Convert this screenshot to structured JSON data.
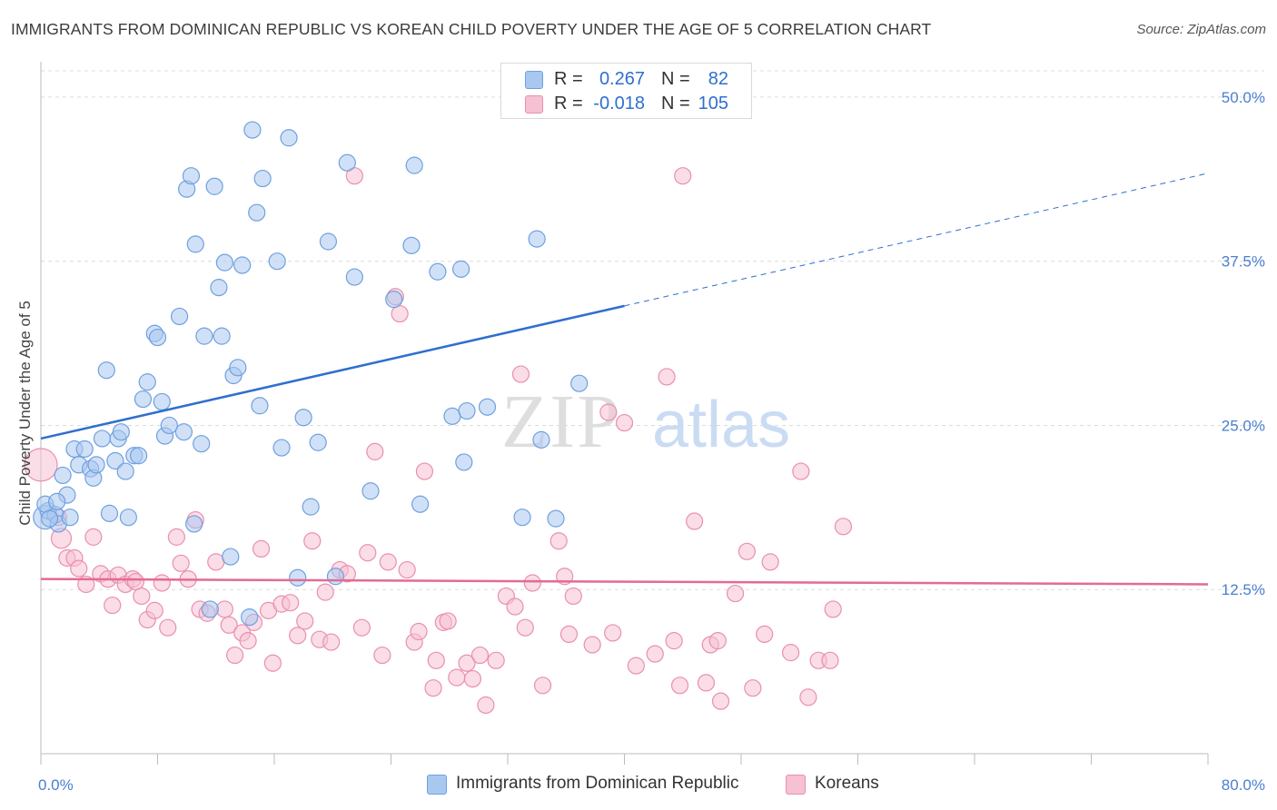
{
  "title": "IMMIGRANTS FROM DOMINICAN REPUBLIC VS KOREAN CHILD POVERTY UNDER THE AGE OF 5 CORRELATION CHART",
  "source": "Source: ZipAtlas.com",
  "watermark": {
    "zip": "ZIP",
    "atlas": "atlas"
  },
  "colors": {
    "blue_fill": "#a9c8f0",
    "blue_stroke": "#6fa0df",
    "blue_line": "#2f6fcf",
    "pink_fill": "#f6c1d2",
    "pink_stroke": "#ea8fae",
    "pink_line": "#e46a93",
    "grid": "#dcdcdc",
    "axis_text": "#4a7fd1"
  },
  "legend_top": [
    {
      "r_label": "R =",
      "r_value": "0.267",
      "n_label": "N =",
      "n_value": "82",
      "color": "#a9c8f0",
      "border": "#6fa0df"
    },
    {
      "r_label": "R =",
      "r_value": "-0.018",
      "n_label": "N =",
      "n_value": "105",
      "color": "#f6c1d2",
      "border": "#ea8fae"
    }
  ],
  "legend_bottom": [
    {
      "label": "Immigrants from Dominican Republic",
      "color": "#a9c8f0",
      "border": "#6fa0df"
    },
    {
      "label": "Koreans",
      "color": "#f6c1d2",
      "border": "#ea8fae"
    }
  ],
  "chart_data": {
    "type": "scatter",
    "title": "IMMIGRANTS FROM DOMINICAN REPUBLIC VS KOREAN CHILD POVERTY UNDER THE AGE OF 5 CORRELATION CHART",
    "xlabel": "",
    "ylabel": "Child Poverty Under the Age of 5",
    "xlim": [
      0,
      80
    ],
    "ylim": [
      0,
      52
    ],
    "x_tick_labels": [
      "0.0%",
      "80.0%"
    ],
    "y_ticks": [
      12.5,
      25.0,
      37.5,
      50.0
    ],
    "y_tick_labels": [
      "12.5%",
      "25.0%",
      "37.5%",
      "50.0%"
    ],
    "grid": true,
    "legend_position": "top-center",
    "series": [
      {
        "name": "Immigrants from Dominican Republic",
        "color": "#a9c8f0",
        "trend": {
          "x": [
            0,
            40
          ],
          "y": [
            24.0,
            34.1
          ],
          "dashed_extension": {
            "x": [
              40,
              80
            ],
            "y": [
              34.1,
              44.2
            ]
          }
        },
        "points": [
          [
            0.3,
            18.0
          ],
          [
            0.5,
            18.5
          ],
          [
            1.0,
            18.2
          ],
          [
            1.2,
            17.5
          ],
          [
            1.5,
            21.2
          ],
          [
            1.8,
            19.7
          ],
          [
            2.0,
            18.0
          ],
          [
            2.3,
            23.2
          ],
          [
            2.6,
            22.0
          ],
          [
            3.0,
            23.2
          ],
          [
            3.4,
            21.7
          ],
          [
            3.6,
            21.0
          ],
          [
            3.8,
            22.0
          ],
          [
            4.2,
            24.0
          ],
          [
            4.5,
            29.2
          ],
          [
            4.7,
            18.3
          ],
          [
            5.1,
            22.3
          ],
          [
            5.3,
            24.0
          ],
          [
            5.5,
            24.5
          ],
          [
            5.8,
            21.5
          ],
          [
            6.0,
            18.0
          ],
          [
            6.4,
            22.7
          ],
          [
            6.7,
            22.7
          ],
          [
            7.0,
            27.0
          ],
          [
            7.3,
            28.3
          ],
          [
            7.8,
            32.0
          ],
          [
            8.0,
            31.7
          ],
          [
            8.3,
            26.8
          ],
          [
            8.5,
            24.2
          ],
          [
            8.8,
            25.0
          ],
          [
            9.5,
            33.3
          ],
          [
            9.8,
            24.5
          ],
          [
            10.0,
            43.0
          ],
          [
            10.3,
            44.0
          ],
          [
            10.5,
            17.5
          ],
          [
            10.6,
            38.8
          ],
          [
            11.0,
            23.6
          ],
          [
            11.2,
            31.8
          ],
          [
            11.6,
            11.0
          ],
          [
            11.9,
            43.2
          ],
          [
            12.2,
            35.5
          ],
          [
            12.4,
            31.8
          ],
          [
            12.6,
            37.4
          ],
          [
            13.0,
            15.0
          ],
          [
            13.2,
            28.8
          ],
          [
            13.5,
            29.4
          ],
          [
            13.8,
            37.2
          ],
          [
            14.3,
            10.4
          ],
          [
            14.5,
            47.5
          ],
          [
            14.8,
            41.2
          ],
          [
            15.0,
            26.5
          ],
          [
            15.2,
            43.8
          ],
          [
            16.2,
            37.5
          ],
          [
            16.5,
            23.3
          ],
          [
            17.0,
            46.9
          ],
          [
            17.6,
            13.4
          ],
          [
            18.0,
            25.6
          ],
          [
            18.5,
            18.8
          ],
          [
            19.0,
            23.7
          ],
          [
            19.7,
            39.0
          ],
          [
            20.2,
            13.5
          ],
          [
            21.0,
            45.0
          ],
          [
            21.5,
            36.3
          ],
          [
            22.6,
            20.0
          ],
          [
            24.2,
            34.6
          ],
          [
            25.4,
            38.7
          ],
          [
            25.6,
            44.8
          ],
          [
            26.0,
            19.0
          ],
          [
            27.2,
            36.7
          ],
          [
            28.2,
            25.7
          ],
          [
            28.8,
            36.9
          ],
          [
            29.0,
            22.2
          ],
          [
            29.2,
            26.1
          ],
          [
            30.6,
            26.4
          ],
          [
            33.0,
            18.0
          ],
          [
            34.0,
            39.2
          ],
          [
            34.3,
            23.9
          ],
          [
            35.3,
            17.9
          ],
          [
            36.9,
            28.2
          ],
          [
            0.3,
            19.0
          ],
          [
            0.6,
            17.9
          ],
          [
            1.1,
            19.2
          ]
        ]
      },
      {
        "name": "Koreans",
        "color": "#f6c1d2",
        "trend": {
          "x": [
            0,
            80
          ],
          "y": [
            13.3,
            12.9
          ]
        },
        "points": [
          [
            0.0,
            22.0
          ],
          [
            1.2,
            18.0
          ],
          [
            1.4,
            16.4
          ],
          [
            1.8,
            14.9
          ],
          [
            2.3,
            14.9
          ],
          [
            2.6,
            14.1
          ],
          [
            3.1,
            12.9
          ],
          [
            3.6,
            16.5
          ],
          [
            4.1,
            13.7
          ],
          [
            4.6,
            13.3
          ],
          [
            4.9,
            11.3
          ],
          [
            5.3,
            13.6
          ],
          [
            5.8,
            12.9
          ],
          [
            6.3,
            13.3
          ],
          [
            6.5,
            13.1
          ],
          [
            6.9,
            12.0
          ],
          [
            7.3,
            10.2
          ],
          [
            7.8,
            10.9
          ],
          [
            8.3,
            13.0
          ],
          [
            8.7,
            9.6
          ],
          [
            9.3,
            16.5
          ],
          [
            9.6,
            14.5
          ],
          [
            10.1,
            13.3
          ],
          [
            10.6,
            17.8
          ],
          [
            10.9,
            11.0
          ],
          [
            11.4,
            10.7
          ],
          [
            12.0,
            14.6
          ],
          [
            12.6,
            11.0
          ],
          [
            12.9,
            9.8
          ],
          [
            13.3,
            7.5
          ],
          [
            13.8,
            9.2
          ],
          [
            14.2,
            8.6
          ],
          [
            14.6,
            10.0
          ],
          [
            15.1,
            15.6
          ],
          [
            15.6,
            10.9
          ],
          [
            15.9,
            6.9
          ],
          [
            16.5,
            11.4
          ],
          [
            17.1,
            11.5
          ],
          [
            17.6,
            9.0
          ],
          [
            18.1,
            10.1
          ],
          [
            18.6,
            16.2
          ],
          [
            19.1,
            8.7
          ],
          [
            19.5,
            12.3
          ],
          [
            19.9,
            8.5
          ],
          [
            20.5,
            14.0
          ],
          [
            21.0,
            13.7
          ],
          [
            21.5,
            44.0
          ],
          [
            22.0,
            9.6
          ],
          [
            22.4,
            15.3
          ],
          [
            22.9,
            23.0
          ],
          [
            23.4,
            7.5
          ],
          [
            23.8,
            14.6
          ],
          [
            24.3,
            34.8
          ],
          [
            24.6,
            33.5
          ],
          [
            25.1,
            14.0
          ],
          [
            25.6,
            8.5
          ],
          [
            25.9,
            9.3
          ],
          [
            26.3,
            21.5
          ],
          [
            26.9,
            5.0
          ],
          [
            27.1,
            7.1
          ],
          [
            27.6,
            10.0
          ],
          [
            27.9,
            10.1
          ],
          [
            28.5,
            5.8
          ],
          [
            29.2,
            6.9
          ],
          [
            29.6,
            5.7
          ],
          [
            30.1,
            7.5
          ],
          [
            30.5,
            3.7
          ],
          [
            31.2,
            7.1
          ],
          [
            31.9,
            12.0
          ],
          [
            32.5,
            11.2
          ],
          [
            32.9,
            28.9
          ],
          [
            33.2,
            9.6
          ],
          [
            33.7,
            13.0
          ],
          [
            34.4,
            5.2
          ],
          [
            35.5,
            16.2
          ],
          [
            35.9,
            13.5
          ],
          [
            36.2,
            9.1
          ],
          [
            36.5,
            12.0
          ],
          [
            37.8,
            8.3
          ],
          [
            38.9,
            26.0
          ],
          [
            39.2,
            9.2
          ],
          [
            40.0,
            25.2
          ],
          [
            40.8,
            6.7
          ],
          [
            42.1,
            7.6
          ],
          [
            42.9,
            28.7
          ],
          [
            43.4,
            8.6
          ],
          [
            43.8,
            5.2
          ],
          [
            44.0,
            44.0
          ],
          [
            44.8,
            17.7
          ],
          [
            45.6,
            5.4
          ],
          [
            45.9,
            8.3
          ],
          [
            46.4,
            8.6
          ],
          [
            46.6,
            4.0
          ],
          [
            47.6,
            12.2
          ],
          [
            48.4,
            15.4
          ],
          [
            48.8,
            5.0
          ],
          [
            49.6,
            9.1
          ],
          [
            50.0,
            14.6
          ],
          [
            51.4,
            7.7
          ],
          [
            52.1,
            21.5
          ],
          [
            52.6,
            4.3
          ],
          [
            53.3,
            7.1
          ],
          [
            54.1,
            7.1
          ],
          [
            54.3,
            11.0
          ],
          [
            55.0,
            17.3
          ]
        ]
      }
    ]
  }
}
